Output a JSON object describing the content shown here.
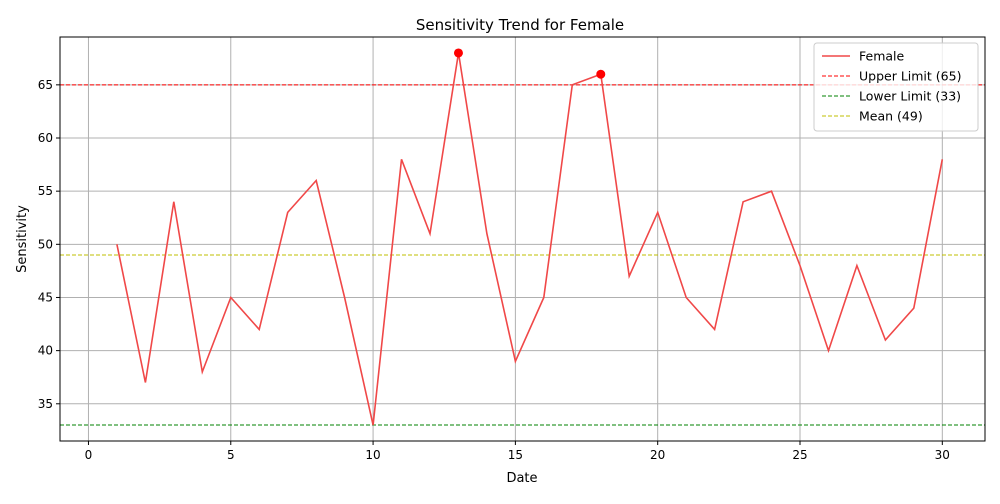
{
  "chart_data": {
    "type": "line",
    "title": "Sensitivity Trend for Female",
    "xlabel": "Date",
    "ylabel": "Sensitivity",
    "xlim": [
      -1,
      31.5
    ],
    "ylim": [
      31.5,
      69.5
    ],
    "xticks": [
      0,
      5,
      10,
      15,
      20,
      25,
      30
    ],
    "yticks": [
      35,
      40,
      45,
      50,
      55,
      60,
      65
    ],
    "grid": true,
    "legend_position": "top-right",
    "series": [
      {
        "name": "Female",
        "color": "#f04848",
        "x": [
          1,
          2,
          3,
          4,
          5,
          6,
          7,
          8,
          9,
          10,
          11,
          12,
          13,
          14,
          15,
          16,
          17,
          18,
          19,
          20,
          21,
          22,
          23,
          24,
          25,
          26,
          27,
          28,
          29,
          30
        ],
        "values": [
          50,
          37,
          54,
          38,
          45,
          42,
          53,
          56,
          45,
          33,
          58,
          51,
          68,
          51,
          39,
          45,
          65,
          66,
          47,
          53,
          45,
          42,
          54,
          55,
          48,
          40,
          48,
          41,
          44,
          58
        ]
      }
    ],
    "outliers": {
      "color": "#ff0000",
      "points": [
        {
          "x": 13,
          "y": 68
        },
        {
          "x": 18,
          "y": 66
        }
      ]
    },
    "reference_lines": [
      {
        "name": "Upper Limit (65)",
        "value": 65,
        "color": "#ff0000",
        "style": "dashed"
      },
      {
        "name": "Lower Limit (33)",
        "value": 33,
        "color": "#008000",
        "style": "dashed"
      },
      {
        "name": "Mean (49)",
        "value": 49,
        "color": "#bfbf00",
        "style": "dashed"
      }
    ]
  }
}
